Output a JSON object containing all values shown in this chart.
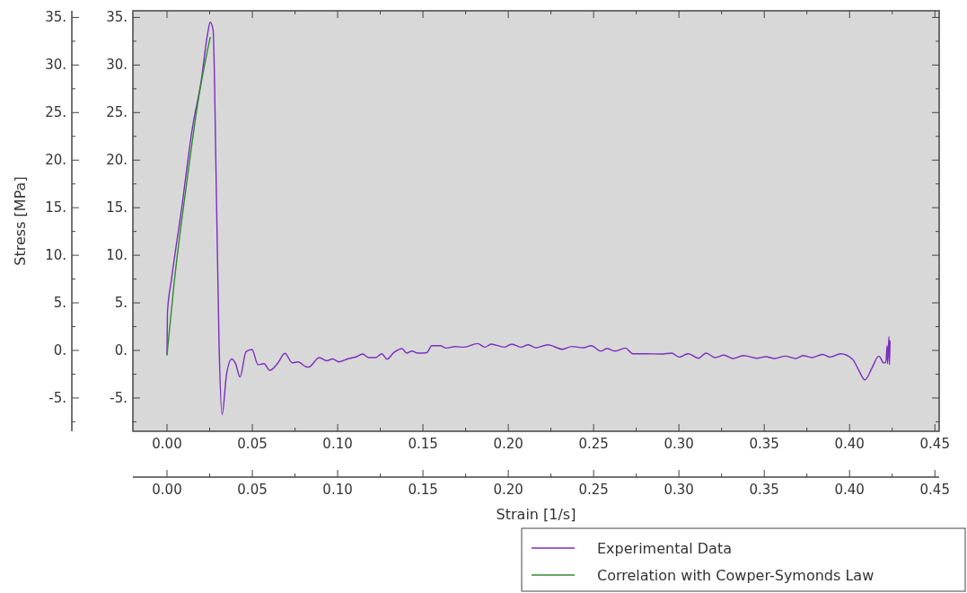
{
  "chart_data": {
    "type": "line",
    "xlabel": "Strain [1/s]",
    "ylabel": "Stress [MPa]",
    "xlim": [
      -0.02,
      0.4525
    ],
    "xticks": [
      {
        "value": 0,
        "label": "0.00"
      },
      {
        "value": 0.025,
        "label": null
      },
      {
        "value": 0.05,
        "label": "0.05"
      },
      {
        "value": 0.075,
        "label": null
      },
      {
        "value": 0.1,
        "label": "0.10"
      },
      {
        "value": 0.125,
        "label": null
      },
      {
        "value": 0.15,
        "label": "0.15"
      },
      {
        "value": 0.175,
        "label": null
      },
      {
        "value": 0.2,
        "label": "0.20"
      },
      {
        "value": 0.225,
        "label": null
      },
      {
        "value": 0.25,
        "label": "0.25"
      },
      {
        "value": 0.275,
        "label": null
      },
      {
        "value": 0.3,
        "label": "0.30"
      },
      {
        "value": 0.325,
        "label": null
      },
      {
        "value": 0.35,
        "label": "0.35"
      },
      {
        "value": 0.375,
        "label": null
      },
      {
        "value": 0.4,
        "label": "0.40"
      },
      {
        "value": 0.425,
        "label": null
      },
      {
        "value": 0.45,
        "label": "0.45"
      }
    ],
    "x2lim": [
      -0.02,
      0.4525
    ],
    "x2ticks": [
      {
        "value": 0,
        "label": "0.00"
      },
      {
        "value": 0.025,
        "label": null
      },
      {
        "value": 0.05,
        "label": "0.05"
      },
      {
        "value": 0.075,
        "label": null
      },
      {
        "value": 0.1,
        "label": "0.10"
      },
      {
        "value": 0.125,
        "label": null
      },
      {
        "value": 0.15,
        "label": "0.15"
      },
      {
        "value": 0.175,
        "label": null
      },
      {
        "value": 0.2,
        "label": "0.20"
      },
      {
        "value": 0.225,
        "label": null
      },
      {
        "value": 0.25,
        "label": "0.25"
      },
      {
        "value": 0.275,
        "label": null
      },
      {
        "value": 0.3,
        "label": "0.30"
      },
      {
        "value": 0.325,
        "label": null
      },
      {
        "value": 0.35,
        "label": "0.35"
      },
      {
        "value": 0.375,
        "label": null
      },
      {
        "value": 0.4,
        "label": "0.40"
      },
      {
        "value": 0.425,
        "label": null
      },
      {
        "value": 0.45,
        "label": "0.45"
      }
    ],
    "ylim": [
      -8.5,
      35.7
    ],
    "yticks": [
      {
        "value": -7.5,
        "label": null
      },
      {
        "value": -5,
        "label": "-5."
      },
      {
        "value": -2.5,
        "label": null
      },
      {
        "value": 0,
        "label": "0."
      },
      {
        "value": 2.5,
        "label": null
      },
      {
        "value": 5,
        "label": "5."
      },
      {
        "value": 7.5,
        "label": null
      },
      {
        "value": 10,
        "label": "10."
      },
      {
        "value": 12.5,
        "label": null
      },
      {
        "value": 15,
        "label": "15."
      },
      {
        "value": 17.5,
        "label": null
      },
      {
        "value": 20,
        "label": "20."
      },
      {
        "value": 22.5,
        "label": null
      },
      {
        "value": 25,
        "label": "25."
      },
      {
        "value": 27.5,
        "label": null
      },
      {
        "value": 30,
        "label": "30."
      },
      {
        "value": 32.5,
        "label": null
      },
      {
        "value": 35,
        "label": "35."
      }
    ],
    "y2lim": [
      -8.5,
      35.7
    ],
    "y2ticks": [
      {
        "value": -7.5,
        "label": null
      },
      {
        "value": -5,
        "label": "-5."
      },
      {
        "value": -2.5,
        "label": null
      },
      {
        "value": 0,
        "label": "0."
      },
      {
        "value": 2.5,
        "label": null
      },
      {
        "value": 5,
        "label": "5."
      },
      {
        "value": 7.5,
        "label": null
      },
      {
        "value": 10,
        "label": "10."
      },
      {
        "value": 12.5,
        "label": null
      },
      {
        "value": 15,
        "label": "15."
      },
      {
        "value": 17.5,
        "label": null
      },
      {
        "value": 20,
        "label": "20."
      },
      {
        "value": 22.5,
        "label": null
      },
      {
        "value": 25,
        "label": "25."
      },
      {
        "value": 27.5,
        "label": null
      },
      {
        "value": 30,
        "label": "30."
      },
      {
        "value": 32.5,
        "label": null
      },
      {
        "value": 35,
        "label": "35."
      }
    ],
    "legend": "bottom right",
    "series": [
      {
        "name": "Experimental Data",
        "color": "#7b2fbe",
        "x": [
          0,
          0.0003,
          0.0025,
          0.0087,
          0.0148,
          0.02,
          0.0239,
          0.0253,
          0.027,
          0.0288,
          0.0305,
          0.0323,
          0.0349,
          0.0379,
          0.0402,
          0.0428,
          0.0463,
          0.0498,
          0.0533,
          0.0568,
          0.0603,
          0.0647,
          0.0691,
          0.0734,
          0.0769,
          0.0813,
          0.083,
          0.0892,
          0.0935,
          0.0971,
          0.1006,
          0.1058,
          0.1111,
          0.1146,
          0.1181,
          0.1224,
          0.1259,
          0.1289,
          0.1329,
          0.1377,
          0.1405,
          0.1434,
          0.147,
          0.1522,
          0.1552,
          0.1601,
          0.1636,
          0.1689,
          0.1741,
          0.182,
          0.1863,
          0.1899,
          0.1977,
          0.2021,
          0.2073,
          0.2117,
          0.2161,
          0.2231,
          0.2319,
          0.2371,
          0.2441,
          0.2485,
          0.2543,
          0.2578,
          0.2625,
          0.2686,
          0.273,
          0.2809,
          0.2897,
          0.2957,
          0.3002,
          0.3054,
          0.3115,
          0.3159,
          0.3212,
          0.3264,
          0.3317,
          0.3378,
          0.3456,
          0.3509,
          0.3561,
          0.3623,
          0.3684,
          0.3728,
          0.378,
          0.3842,
          0.3885,
          0.3947,
          0.4017,
          0.4052,
          0.409,
          0.4131,
          0.4171,
          0.4201,
          0.4213,
          0.422,
          0.4223,
          0.4231,
          0.4234,
          0.4237
        ],
        "values": [
          -0.45,
          4.1,
          7.3,
          15.1,
          23.3,
          28.3,
          33.4,
          34.5,
          33.7,
          18,
          0.66,
          -6.74,
          -2.5,
          -0.9,
          -1.4,
          -2.8,
          -0.13,
          0.1,
          -1.5,
          -1.4,
          -2.1,
          -1.4,
          -0.3,
          -1.3,
          -1.2,
          -1.7,
          -1.76,
          -0.75,
          -1.08,
          -0.9,
          -1.2,
          -0.9,
          -0.66,
          -0.38,
          -0.75,
          -0.75,
          -0.35,
          -0.92,
          -0.23,
          0.19,
          -0.28,
          -0.07,
          -0.28,
          -0.23,
          0.5,
          0.5,
          0.25,
          0.4,
          0.34,
          0.72,
          0.34,
          0.66,
          0.34,
          0.66,
          0.34,
          0.59,
          0.28,
          0.59,
          0.12,
          0.41,
          0.28,
          0.5,
          -0.07,
          0.19,
          -0.07,
          0.25,
          -0.35,
          -0.35,
          -0.38,
          -0.28,
          -0.7,
          -0.35,
          -0.82,
          -0.28,
          -0.75,
          -0.5,
          -0.85,
          -0.54,
          -0.82,
          -0.66,
          -0.85,
          -0.6,
          -0.85,
          -0.54,
          -0.75,
          -0.42,
          -0.7,
          -0.35,
          -0.92,
          -2.02,
          -3.1,
          -1.85,
          -0.6,
          -1.32,
          -1.23,
          0.5,
          -1.4,
          1.44,
          -1.5,
          0.97
        ]
      },
      {
        "name": "Correlation with Cowper-Symonds Law",
        "color": "#2e8b2e",
        "x": [
          0,
          0.0043,
          0.0113,
          0.0183,
          0.0253
        ],
        "values": [
          -0.45,
          7.3,
          17.3,
          26.3,
          32.9
        ]
      }
    ]
  }
}
